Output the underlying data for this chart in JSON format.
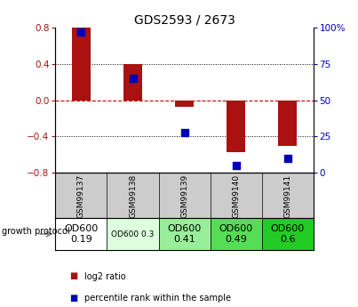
{
  "title": "GDS2593 / 2673",
  "samples": [
    "GSM99137",
    "GSM99138",
    "GSM99139",
    "GSM99140",
    "GSM99141"
  ],
  "log2_ratio": [
    0.8,
    0.4,
    -0.07,
    -0.57,
    -0.5
  ],
  "percentile_rank": [
    97,
    65,
    28,
    5,
    10
  ],
  "bar_color": "#aa1111",
  "dot_color": "#0000bb",
  "ylim_left": [
    -0.8,
    0.8
  ],
  "ylim_right": [
    0,
    100
  ],
  "yticks_left": [
    -0.8,
    -0.4,
    0.0,
    0.4,
    0.8
  ],
  "yticks_right": [
    0,
    25,
    50,
    75,
    100
  ],
  "growth_labels": [
    "OD600\n0.19",
    "OD600 0.3",
    "OD600\n0.41",
    "OD600\n0.49",
    "OD600\n0.6"
  ],
  "growth_colors": [
    "#ffffff",
    "#ddffdd",
    "#99ee99",
    "#55dd55",
    "#22cc22"
  ],
  "growth_fontsizes": [
    8,
    6.5,
    8,
    8,
    8
  ],
  "background_color": "#ffffff",
  "zero_line_color": "#cc0000",
  "title_fontsize": 10,
  "tick_fontsize": 7.5,
  "bar_width": 0.35
}
